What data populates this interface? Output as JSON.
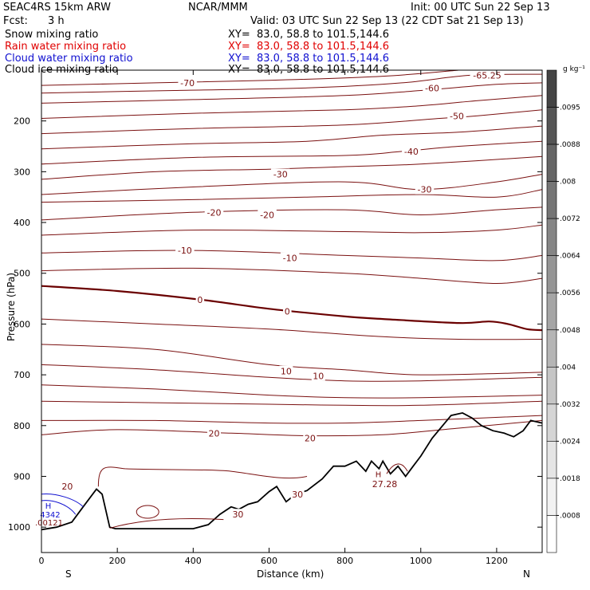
{
  "header": {
    "model": "SEAC4RS 15km ARW",
    "org": "NCAR/MMM",
    "init": "Init: 00 UTC Sun 22 Sep 13",
    "fcst_label": "Fcst:",
    "fcst_value": "3 h",
    "valid": "Valid: 03 UTC Sun 22 Sep 13 (22 CDT Sat 21 Sep 13)"
  },
  "fields": [
    {
      "name": "Snow mixing ratio",
      "xy": "XY=  83.0, 58.8 to 101.5,144.6",
      "color": "#000000"
    },
    {
      "name": "Rain water mixing ratio",
      "xy": "XY=  83.0, 58.8 to 101.5,144.6",
      "color": "#e00000"
    },
    {
      "name": "Cloud water mixing ratio",
      "xy": "XY=  83.0, 58.8 to 101.5,144.6",
      "color": "#1010d0"
    },
    {
      "name": "Cloud ice mixing ratio",
      "xy": "XY=  83.0, 58.8 to 101.5,144.6",
      "color": "#000000"
    }
  ],
  "colorbar": {
    "unit": "g kg⁻¹",
    "labels": [
      ".0095",
      ".0088",
      ".008",
      ".0072",
      ".0064",
      ".0056",
      ".0048",
      ".004",
      ".0032",
      ".0024",
      ".0018",
      ".0008"
    ],
    "shades": [
      "#444444",
      "#555555",
      "#656565",
      "#757575",
      "#858585",
      "#959595",
      "#a5a5a5",
      "#b5b5b5",
      "#c5c5c5",
      "#d5d5d5",
      "#e5e5e5",
      "#f2f2f2",
      "#ffffff"
    ]
  },
  "chart_data": {
    "type": "cross-section",
    "xlabel": "Distance (km)",
    "ylabel": "Pressure (hPa)",
    "xlim": [
      0,
      1320
    ],
    "ylim": [
      1050,
      100
    ],
    "x_ticks": [
      0,
      200,
      400,
      600,
      800,
      1000,
      1200
    ],
    "y_ticks": [
      200,
      300,
      400,
      500,
      600,
      700,
      800,
      900,
      1000
    ],
    "y_tick_labels": [
      "200",
      "300",
      "400",
      "500",
      "600",
      "700",
      "800",
      "900",
      "1000"
    ],
    "end_labels": {
      "left": "S",
      "right": "N"
    },
    "contour_color": "#7a1010",
    "zero_line_color": "#6a0000",
    "terrain_color": "#000000",
    "temperature_contour_labels": [
      {
        "text": "-70",
        "x": 385,
        "p": 125
      },
      {
        "text": "-65.25",
        "x": 1175,
        "p": 110
      },
      {
        "text": "-60",
        "x": 1030,
        "p": 135
      },
      {
        "text": "-50",
        "x": 1095,
        "p": 190
      },
      {
        "text": "-40",
        "x": 975,
        "p": 260
      },
      {
        "text": "-30",
        "x": 630,
        "p": 305
      },
      {
        "text": "-30",
        "x": 1010,
        "p": 335
      },
      {
        "text": "-20",
        "x": 455,
        "p": 380
      },
      {
        "text": "-20",
        "x": 595,
        "p": 385
      },
      {
        "text": "-10",
        "x": 378,
        "p": 455
      },
      {
        "text": "-10",
        "x": 655,
        "p": 470
      },
      {
        "text": "0",
        "x": 418,
        "p": 552
      },
      {
        "text": "0",
        "x": 648,
        "p": 575
      },
      {
        "text": "10",
        "x": 645,
        "p": 693
      },
      {
        "text": "10",
        "x": 730,
        "p": 702
      },
      {
        "text": "20",
        "x": 455,
        "p": 815
      },
      {
        "text": "20",
        "x": 708,
        "p": 825
      },
      {
        "text": "20",
        "x": 68,
        "p": 920
      },
      {
        "text": "30",
        "x": 675,
        "p": 935
      },
      {
        "text": "30",
        "x": 518,
        "p": 975
      },
      {
        "text": "27.28",
        "x": 905,
        "p": 915
      }
    ],
    "other_labels": [
      {
        "text": "H",
        "x": 18,
        "p": 957,
        "color": "#1010d0"
      },
      {
        "text": "H",
        "x": 888,
        "p": 895,
        "color": "#7a1010"
      },
      {
        "text": "4342",
        "x": 23,
        "p": 975,
        "color": "#1010d0"
      },
      {
        "text": ".00121",
        "x": 20,
        "p": 990,
        "color": "#7a1010"
      }
    ],
    "temperature_contours": [
      {
        "level": -70,
        "points": [
          [
            0,
            130
          ],
          [
            300,
            125
          ],
          [
            600,
            120
          ],
          [
            900,
            112
          ],
          [
            1100,
            100
          ]
        ]
      },
      {
        "level": -65,
        "points": [
          [
            0,
            145
          ],
          [
            350,
            140
          ],
          [
            700,
            135
          ],
          [
            950,
            125
          ],
          [
            1130,
            110
          ],
          [
            1320,
            108
          ]
        ]
      },
      {
        "level": -60,
        "points": [
          [
            0,
            165
          ],
          [
            400,
            158
          ],
          [
            800,
            150
          ],
          [
            1000,
            140
          ],
          [
            1200,
            128
          ],
          [
            1320,
            125
          ]
        ]
      },
      {
        "level": -55,
        "points": [
          [
            0,
            195
          ],
          [
            400,
            185
          ],
          [
            800,
            178
          ],
          [
            1000,
            170
          ],
          [
            1150,
            160
          ],
          [
            1320,
            150
          ]
        ]
      },
      {
        "level": -50,
        "points": [
          [
            0,
            225
          ],
          [
            400,
            215
          ],
          [
            800,
            208
          ],
          [
            1050,
            195
          ],
          [
            1150,
            190
          ],
          [
            1320,
            178
          ]
        ]
      },
      {
        "level": -45,
        "points": [
          [
            0,
            255
          ],
          [
            400,
            245
          ],
          [
            700,
            240
          ],
          [
            900,
            228
          ],
          [
            1100,
            222
          ],
          [
            1320,
            210
          ]
        ]
      },
      {
        "level": -40,
        "points": [
          [
            0,
            285
          ],
          [
            400,
            272
          ],
          [
            800,
            268
          ],
          [
            950,
            260
          ],
          [
            1100,
            250
          ],
          [
            1320,
            240
          ]
        ]
      },
      {
        "level": -35,
        "points": [
          [
            0,
            315
          ],
          [
            300,
            300
          ],
          [
            600,
            295
          ],
          [
            800,
            290
          ],
          [
            1000,
            285
          ],
          [
            1320,
            270
          ]
        ]
      },
      {
        "level": -30,
        "points": [
          [
            0,
            345
          ],
          [
            400,
            330
          ],
          [
            800,
            320
          ],
          [
            1000,
            335
          ],
          [
            1200,
            320
          ],
          [
            1320,
            305
          ]
        ]
      },
      {
        "level": -25,
        "points": [
          [
            0,
            360
          ],
          [
            400,
            355
          ],
          [
            700,
            350
          ],
          [
            1000,
            345
          ],
          [
            1200,
            350
          ],
          [
            1320,
            335
          ]
        ]
      },
      {
        "level": -20,
        "points": [
          [
            0,
            395
          ],
          [
            400,
            380
          ],
          [
            800,
            375
          ],
          [
            1000,
            385
          ],
          [
            1200,
            375
          ],
          [
            1320,
            370
          ]
        ]
      },
      {
        "level": -15,
        "points": [
          [
            0,
            425
          ],
          [
            400,
            415
          ],
          [
            800,
            418
          ],
          [
            1000,
            420
          ],
          [
            1200,
            415
          ],
          [
            1320,
            405
          ]
        ]
      },
      {
        "level": -10,
        "points": [
          [
            0,
            460
          ],
          [
            400,
            455
          ],
          [
            800,
            465
          ],
          [
            1000,
            470
          ],
          [
            1200,
            475
          ],
          [
            1320,
            465
          ]
        ]
      },
      {
        "level": -5,
        "points": [
          [
            0,
            495
          ],
          [
            400,
            490
          ],
          [
            800,
            500
          ],
          [
            1000,
            510
          ],
          [
            1200,
            520
          ],
          [
            1320,
            510
          ]
        ]
      },
      {
        "level": 0,
        "points": [
          [
            0,
            525
          ],
          [
            200,
            535
          ],
          [
            420,
            552
          ],
          [
            600,
            570
          ],
          [
            800,
            585
          ],
          [
            900,
            590
          ],
          [
            1100,
            598
          ],
          [
            1180,
            595
          ],
          [
            1230,
            600
          ],
          [
            1280,
            610
          ],
          [
            1320,
            612
          ]
        ]
      },
      {
        "level": 5,
        "points": [
          [
            0,
            590
          ],
          [
            300,
            600
          ],
          [
            600,
            610
          ],
          [
            900,
            625
          ],
          [
            1100,
            630
          ],
          [
            1320,
            630
          ]
        ]
      },
      {
        "level": 10,
        "points": [
          [
            0,
            640
          ],
          [
            300,
            650
          ],
          [
            600,
            680
          ],
          [
            800,
            690
          ],
          [
            1000,
            700
          ],
          [
            1320,
            695
          ]
        ]
      },
      {
        "level": 15,
        "points": [
          [
            0,
            680
          ],
          [
            300,
            690
          ],
          [
            600,
            705
          ],
          [
            800,
            712
          ],
          [
            1000,
            712
          ],
          [
            1320,
            705
          ]
        ]
      },
      {
        "level": 20,
        "points": [
          [
            0,
            720
          ],
          [
            300,
            728
          ],
          [
            600,
            740
          ],
          [
            800,
            745
          ],
          [
            1000,
            745
          ],
          [
            1320,
            740
          ]
        ]
      },
      {
        "level": 25,
        "points": [
          [
            0,
            752
          ],
          [
            300,
            755
          ],
          [
            600,
            758
          ],
          [
            800,
            760
          ],
          [
            1000,
            760
          ],
          [
            1320,
            752
          ]
        ]
      },
      {
        "level": 30,
        "points": [
          [
            0,
            790
          ],
          [
            300,
            790
          ],
          [
            600,
            795
          ],
          [
            800,
            795
          ],
          [
            1000,
            790
          ],
          [
            1320,
            780
          ]
        ]
      },
      {
        "level": 35,
        "points": [
          [
            0,
            818
          ],
          [
            200,
            808
          ],
          [
            500,
            815
          ],
          [
            700,
            820
          ],
          [
            900,
            818
          ],
          [
            1100,
            805
          ],
          [
            1320,
            790
          ]
        ]
      }
    ],
    "terrain": {
      "points": [
        [
          0,
          1005
        ],
        [
          40,
          1000
        ],
        [
          80,
          990
        ],
        [
          110,
          960
        ],
        [
          145,
          925
        ],
        [
          160,
          935
        ],
        [
          180,
          1000
        ],
        [
          195,
          1003
        ],
        [
          400,
          1003
        ],
        [
          440,
          995
        ],
        [
          470,
          975
        ],
        [
          500,
          960
        ],
        [
          520,
          965
        ],
        [
          545,
          955
        ],
        [
          570,
          950
        ],
        [
          600,
          930
        ],
        [
          620,
          920
        ],
        [
          645,
          950
        ],
        [
          670,
          935
        ],
        [
          700,
          928
        ],
        [
          740,
          905
        ],
        [
          770,
          880
        ],
        [
          800,
          880
        ],
        [
          830,
          870
        ],
        [
          855,
          890
        ],
        [
          870,
          870
        ],
        [
          890,
          885
        ],
        [
          900,
          870
        ],
        [
          920,
          895
        ],
        [
          940,
          880
        ],
        [
          960,
          900
        ],
        [
          980,
          880
        ],
        [
          1000,
          860
        ],
        [
          1030,
          825
        ],
        [
          1080,
          780
        ],
        [
          1110,
          775
        ],
        [
          1135,
          785
        ],
        [
          1160,
          800
        ],
        [
          1190,
          810
        ],
        [
          1220,
          815
        ],
        [
          1245,
          822
        ],
        [
          1270,
          810
        ],
        [
          1290,
          790
        ],
        [
          1320,
          795
        ]
      ]
    }
  }
}
